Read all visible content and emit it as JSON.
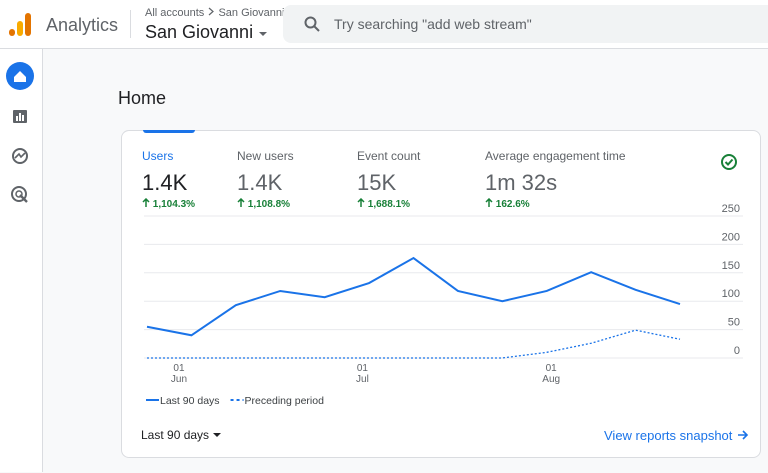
{
  "header": {
    "product": "Analytics",
    "breadcrumb": "All accounts",
    "breadcrumb_current": "San Giovanni",
    "property": "San Giovanni",
    "search_placeholder": "Try searching \"add web stream\""
  },
  "page_title": "Home",
  "metrics": [
    {
      "label": "Users",
      "value": "1.4K",
      "change": "1,104.3%"
    },
    {
      "label": "New users",
      "value": "1.4K",
      "change": "1,108.8%"
    },
    {
      "label": "Event count",
      "value": "15K",
      "change": "1,688.1%"
    },
    {
      "label": "Average engagement time",
      "value": "1m 32s",
      "change": "162.6%"
    }
  ],
  "chart_data": {
    "type": "line",
    "categories": [
      null,
      null,
      null,
      null,
      null,
      null,
      null,
      null,
      null,
      null,
      null,
      null,
      null
    ],
    "x_labels": [
      {
        "day": "01",
        "month": "Jun"
      },
      {
        "day": "01",
        "month": "Jul"
      },
      {
        "day": "01",
        "month": "Aug"
      }
    ],
    "series": [
      {
        "name": "Last 90 days",
        "color": "#1a73e8",
        "values": [
          55,
          40,
          93,
          118,
          107,
          132,
          176,
          118,
          100,
          118,
          151,
          120,
          95
        ]
      },
      {
        "name": "Preceding period",
        "color": "#1a73e8",
        "dashed": true,
        "values": [
          0,
          0,
          0,
          0,
          0,
          0,
          0,
          0,
          0,
          10,
          26,
          49,
          33
        ]
      }
    ],
    "ylim": [
      0,
      250
    ],
    "yticks": [
      0,
      50,
      100,
      150,
      200,
      250
    ],
    "grid": true
  },
  "date_range": "Last 90 days",
  "link": "View reports snapshot"
}
